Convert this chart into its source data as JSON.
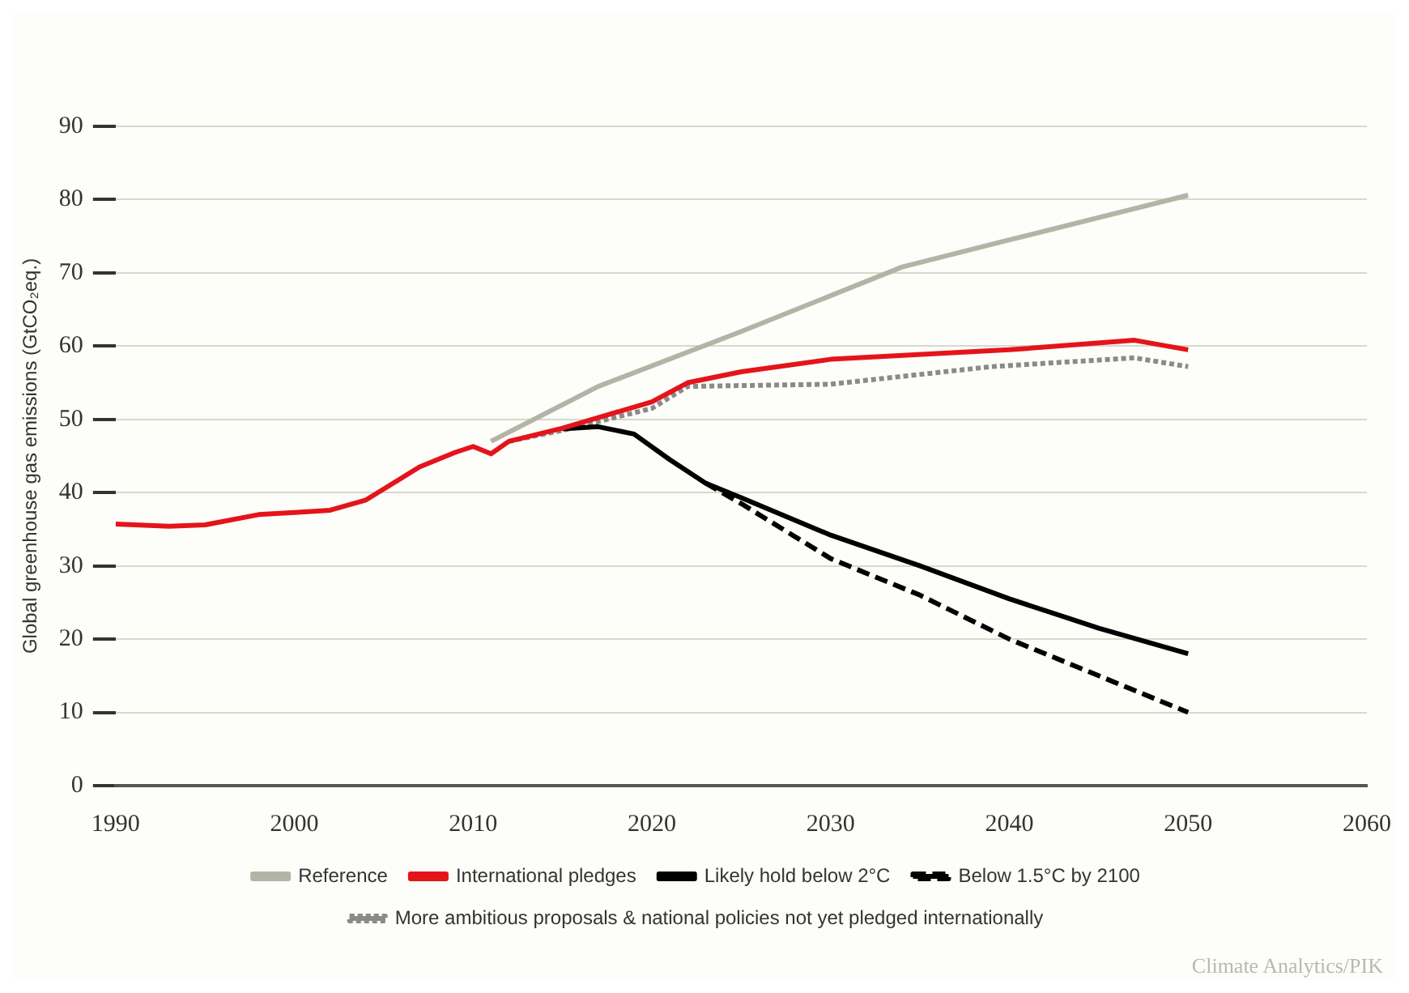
{
  "chart_data": {
    "type": "line",
    "ylabel": "Global greenhouse gas emissions (GtCO₂eq.)",
    "xlim": [
      1990,
      2060
    ],
    "xticks": [
      1990,
      2000,
      2010,
      2020,
      2030,
      2040,
      2050,
      2060
    ],
    "ylim": [
      0,
      90
    ],
    "yticks": [
      0,
      10,
      20,
      30,
      40,
      50,
      60,
      70,
      80,
      90
    ],
    "grid": "y",
    "legend": "bottom",
    "marker": "none",
    "annotations": [
      "Climate Analytics/PIK"
    ],
    "series": [
      {
        "name": "Reference",
        "color": "#b4b4a6",
        "line_style": "solid",
        "x": [
          2011,
          2017,
          2025,
          2034,
          2040,
          2050
        ],
        "values": [
          47,
          54.5,
          62,
          70.8,
          74.5,
          80.6
        ]
      },
      {
        "name": "International pledges",
        "color": "#e4141b",
        "line_style": "solid",
        "x": [
          1990,
          1993,
          1995,
          1998,
          2000,
          2002,
          2004,
          2005,
          2007,
          2009,
          2010,
          2011,
          2012,
          2015,
          2020,
          2022,
          2025,
          2030,
          2040,
          2047,
          2050
        ],
        "values": [
          35.7,
          35.4,
          35.6,
          37,
          37.3,
          37.6,
          39,
          40.5,
          43.5,
          45.5,
          46.3,
          45.3,
          47,
          48.8,
          52.4,
          55,
          56.5,
          58.2,
          59.5,
          60.8,
          59.5
        ]
      },
      {
        "name": "Likely hold below 2°C",
        "color": "#000000",
        "line_style": "solid",
        "x": [
          2015,
          2017,
          2019,
          2021,
          2023,
          2025,
          2030,
          2035,
          2040,
          2045,
          2050
        ],
        "values": [
          48.7,
          49,
          48,
          44.5,
          41.3,
          39.3,
          34.2,
          30,
          25.5,
          21.5,
          18
        ]
      },
      {
        "name": "Below 1.5°C by 2100",
        "color": "#000000",
        "line_style": "dashed",
        "x": [
          2023,
          2025,
          2030,
          2035,
          2040,
          2045,
          2050
        ],
        "values": [
          41.3,
          38.5,
          31,
          26,
          20,
          15,
          10
        ]
      },
      {
        "name": "More ambitious proposals & national policies not yet pledged internationally",
        "color": "#8a8a8a",
        "line_style": "dotted",
        "x": [
          2012,
          2015,
          2020,
          2022,
          2030,
          2039,
          2047,
          2050
        ],
        "values": [
          47,
          48.5,
          51.5,
          54.5,
          54.8,
          57.2,
          58.4,
          57.2
        ]
      }
    ]
  }
}
